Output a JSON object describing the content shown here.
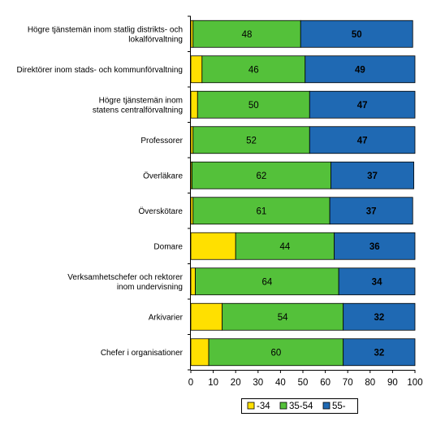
{
  "chart_data": {
    "type": "bar",
    "orientation": "horizontal",
    "stacked": true,
    "categories": [
      [
        "Högre tjänstemän inom statlig distrikts- och",
        "lokalförvaltning"
      ],
      [
        "Direktörer inom stads- och kommunförvaltning"
      ],
      [
        "Högre tjänstemän inom",
        "statens centralförvaltning"
      ],
      [
        "Professorer"
      ],
      [
        "Överläkare"
      ],
      [
        "Överskötare"
      ],
      [
        "Domare"
      ],
      [
        "Verksamhetschefer och rektorer",
        "inom undervisning"
      ],
      [
        "Arkivarier"
      ],
      [
        "Chefer i organisationer"
      ]
    ],
    "series": [
      {
        "name": "-34",
        "color": "#FFE000",
        "values": [
          1,
          5,
          3,
          1,
          0.5,
          1,
          20,
          2,
          14,
          8
        ]
      },
      {
        "name": "35-54",
        "color": "#54C13A",
        "values": [
          48,
          46,
          50,
          52,
          62,
          61,
          44,
          64,
          54,
          60
        ]
      },
      {
        "name": "55-",
        "color": "#1F69B3",
        "values": [
          50,
          49,
          47,
          47,
          37,
          37,
          36,
          34,
          32,
          32
        ]
      }
    ],
    "data_labels": {
      "35-54": [
        "48",
        "46",
        "50",
        "52",
        "62",
        "61",
        "44",
        "64",
        "54",
        "60"
      ],
      "55-": [
        "50",
        "49",
        "47",
        "47",
        "37",
        "37",
        "36",
        "34",
        "32",
        "32"
      ]
    },
    "xlim": [
      0,
      100
    ],
    "xticks": [
      0,
      10,
      20,
      30,
      40,
      50,
      60,
      70,
      80,
      90,
      100
    ],
    "grid": false,
    "legend_position": "bottom",
    "title": "",
    "xlabel": "",
    "ylabel": ""
  }
}
